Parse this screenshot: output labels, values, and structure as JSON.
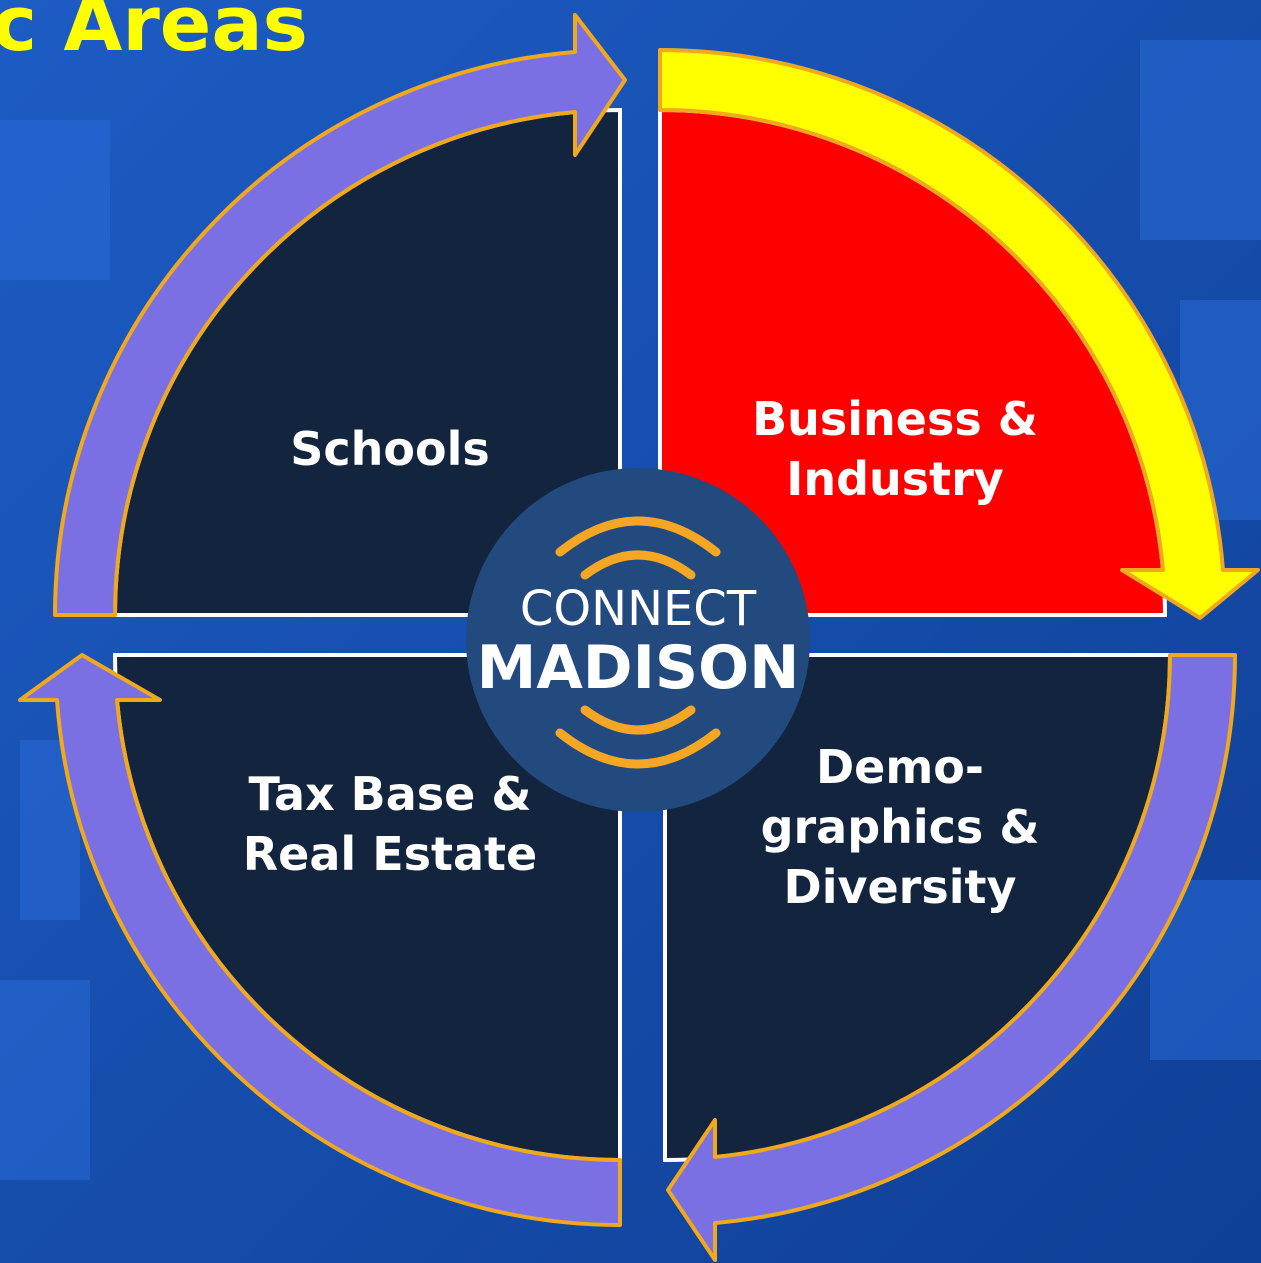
{
  "title": "c Areas",
  "quadrants": [
    {
      "lines": [
        "Schools"
      ]
    },
    {
      "lines": [
        "Business &",
        "Industry"
      ]
    },
    {
      "lines": [
        "Tax Base &",
        "Real Estate"
      ]
    },
    {
      "lines": [
        "Demo-",
        "graphics &",
        "Diversity"
      ]
    }
  ],
  "logo": {
    "line1": "CONNECT",
    "line2": "MADISON"
  }
}
